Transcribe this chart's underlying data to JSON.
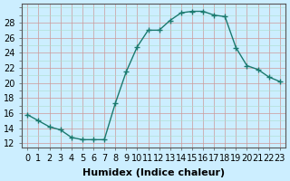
{
  "x": [
    0,
    1,
    2,
    3,
    4,
    5,
    6,
    7,
    8,
    9,
    10,
    11,
    12,
    13,
    14,
    15,
    16,
    17,
    18,
    19,
    20,
    21,
    22,
    23
  ],
  "y": [
    15.8,
    15.0,
    14.2,
    13.8,
    12.8,
    12.5,
    12.5,
    12.5,
    17.3,
    21.5,
    24.8,
    27.0,
    27.0,
    28.3,
    29.3,
    29.5,
    29.5,
    29.0,
    28.8,
    24.7,
    22.3,
    21.8,
    20.8,
    20.2
  ],
  "line_color": "#1a7a6e",
  "marker": "+",
  "marker_size": 5,
  "bg_color": "#cceeff",
  "minor_grid_color": "#aaddcc",
  "major_grid_color": "#cc9999",
  "xlabel": "Humidex (Indice chaleur)",
  "xlim": [
    -0.5,
    23.5
  ],
  "ylim": [
    11.5,
    30.5
  ],
  "yticks": [
    12,
    14,
    16,
    18,
    20,
    22,
    24,
    26,
    28
  ],
  "xticks": [
    0,
    1,
    2,
    3,
    4,
    5,
    6,
    7,
    8,
    9,
    10,
    11,
    12,
    13,
    14,
    15,
    16,
    17,
    18,
    19,
    20,
    21,
    22,
    23
  ],
  "xtick_labels": [
    "0",
    "1",
    "2",
    "3",
    "4",
    "5",
    "6",
    "7",
    "8",
    "9",
    "10",
    "11",
    "12",
    "13",
    "14",
    "15",
    "16",
    "17",
    "18",
    "19",
    "20",
    "21",
    "22",
    "23"
  ],
  "font_size": 7,
  "xlabel_fontsize": 8
}
